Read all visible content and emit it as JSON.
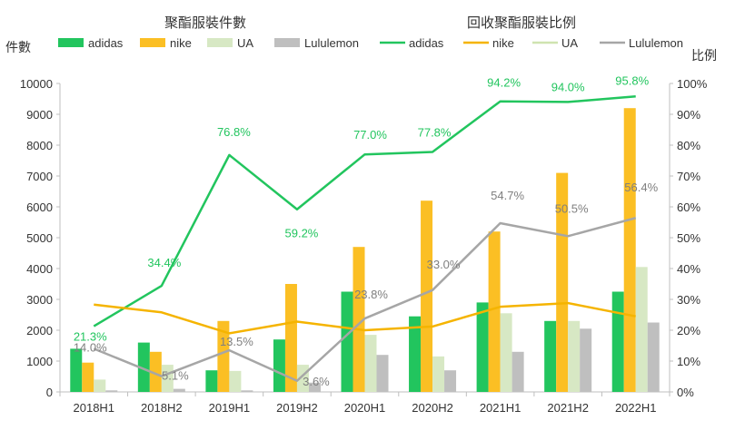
{
  "chart_data": {
    "type": "bar+line",
    "title_left": "聚酯服裝件數",
    "title_right": "回收聚酯服裝比例",
    "ylabel_left": "件數",
    "ylabel_right": "比例",
    "categories": [
      "2018H1",
      "2018H2",
      "2019H1",
      "2019H2",
      "2020H1",
      "2020H2",
      "2021H1",
      "2021H2",
      "2022H1"
    ],
    "y_left": {
      "min": 0,
      "max": 10000,
      "ticks": [
        "0",
        "1000",
        "2000",
        "3000",
        "4000",
        "5000",
        "6000",
        "7000",
        "8000",
        "9000",
        "10000"
      ]
    },
    "y_right": {
      "min": 0,
      "max": 100,
      "ticks": [
        "0%",
        "10%",
        "20%",
        "30%",
        "40%",
        "50%",
        "60%",
        "70%",
        "80%",
        "90%",
        "100%"
      ]
    },
    "grid": false,
    "legend_position": "top",
    "bar_series": [
      {
        "name": "adidas",
        "color": "#22c55e",
        "values": [
          1400,
          1600,
          700,
          1700,
          3250,
          2450,
          2900,
          2300,
          3250
        ]
      },
      {
        "name": "nike",
        "color": "#fbbf24",
        "values": [
          950,
          1300,
          2300,
          3500,
          4700,
          6200,
          5200,
          7100,
          9200
        ]
      },
      {
        "name": "UA",
        "color": "#d7e8c4",
        "values": [
          400,
          880,
          680,
          880,
          1850,
          1150,
          2550,
          2300,
          4050
        ]
      },
      {
        "name": "Lululemon",
        "color": "#bfbfbf",
        "values": [
          50,
          100,
          50,
          300,
          1200,
          700,
          1300,
          2050,
          2250
        ]
      }
    ],
    "line_series": [
      {
        "name": "adidas",
        "color": "#22c55e",
        "values": [
          21.3,
          34.4,
          76.8,
          59.2,
          77.0,
          77.8,
          94.2,
          94.0,
          95.8
        ],
        "labels": [
          "21.3%",
          "34.4%",
          "76.8%",
          "59.2%",
          "77.0%",
          "77.8%",
          "94.2%",
          "94.0%",
          "95.8%"
        ]
      },
      {
        "name": "nike",
        "color": "#f5b400",
        "values": [
          28.3,
          25.8,
          19.0,
          22.8,
          20.0,
          21.2,
          27.6,
          28.8,
          24.5
        ],
        "labels": []
      },
      {
        "name": "UA",
        "color": "#cfe3b0",
        "values": [
          null,
          null,
          null,
          null,
          null,
          null,
          null,
          null,
          null
        ],
        "labels": []
      },
      {
        "name": "Lululemon",
        "color": "#a6a6a6",
        "values": [
          14.0,
          5.1,
          13.5,
          3.6,
          23.8,
          33.0,
          54.7,
          50.5,
          56.4
        ],
        "labels": [
          "14.0%",
          "5.1%",
          "13.5%",
          "3.6%",
          "23.8%",
          "33.0%",
          "54.7%",
          "50.5%",
          "56.4%"
        ]
      }
    ]
  }
}
